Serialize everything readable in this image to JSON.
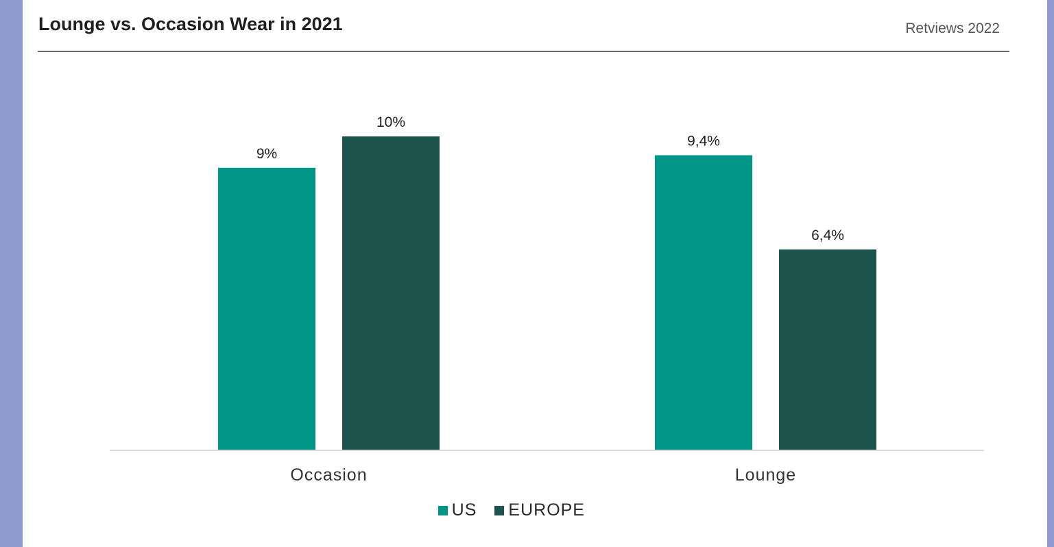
{
  "header": {
    "title": "Lounge vs. Occasion Wear in 2021",
    "source": "Retviews 2022"
  },
  "colors": {
    "US": "#009687",
    "EUROPE": "#1d534d"
  },
  "chart_data": {
    "type": "bar",
    "title": "Lounge vs. Occasion Wear in 2021",
    "categories": [
      "Occasion",
      "Lounge"
    ],
    "series": [
      {
        "name": "US",
        "values": [
          9,
          9.4
        ],
        "labels": [
          "9%",
          "9,4%"
        ]
      },
      {
        "name": "EUROPE",
        "values": [
          10,
          6.4
        ],
        "labels": [
          "10%",
          "6,4%"
        ]
      }
    ],
    "ylim": [
      0,
      10
    ],
    "grid": false,
    "legend": "bottom-center"
  }
}
